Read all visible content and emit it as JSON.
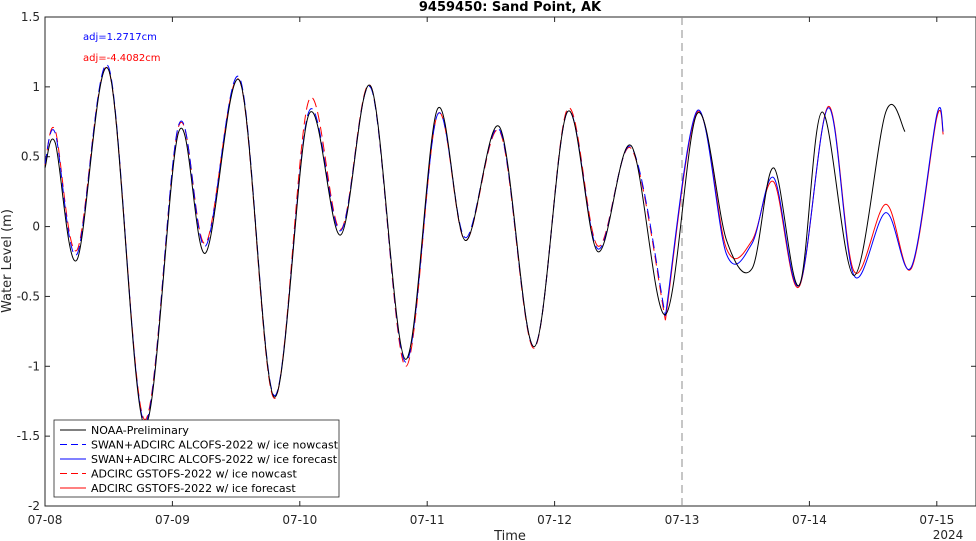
{
  "chart_data": {
    "type": "line",
    "title": "9459450: Sand Point, AK",
    "xlabel": "Time",
    "ylabel": "Water Level (m)",
    "xlim": [
      "07-08",
      "07-15 ~06:00"
    ],
    "ylim": [
      -2,
      1.5
    ],
    "x_tick_labels": [
      "07-08",
      "07-09",
      "07-10",
      "07-11",
      "07-12",
      "07-13",
      "07-14",
      "07-15"
    ],
    "x_year_label": "2024",
    "y_tick_labels": [
      "-2",
      "-1.5",
      "-1",
      "-0.5",
      "0",
      "0.5",
      "1",
      "1.5"
    ],
    "grid": false,
    "nowcast_forecast_divider_x": "07-13 00:00",
    "annotations": [
      {
        "text": "adj=1.2717cm",
        "color": "#0000ff"
      },
      {
        "text": "adj=-4.4082cm",
        "color": "#ff0000"
      }
    ],
    "legend_position": "lower-left",
    "x_units": "days since 07-08 00:00",
    "series": [
      {
        "name": "NOAA-Preliminary",
        "color": "#000000",
        "dash": "solid",
        "x": [
          0,
          0.08,
          0.25,
          0.5,
          0.78,
          1.05,
          1.26,
          1.53,
          1.8,
          2.07,
          2.32,
          2.56,
          2.83,
          3.08,
          3.3,
          3.57,
          3.84,
          4.1,
          4.34,
          4.6,
          4.87,
          5.12,
          5.35,
          5.55,
          5.72,
          5.92,
          6.1,
          6.35,
          6.6,
          6.75
        ],
        "y": [
          0.42,
          0.6,
          -0.24,
          1.12,
          -1.42,
          0.68,
          -0.19,
          1.04,
          -1.22,
          0.8,
          -0.06,
          1.0,
          -0.95,
          0.84,
          -0.1,
          0.71,
          -0.86,
          0.82,
          -0.18,
          0.58,
          -0.63,
          0.81,
          -0.1,
          -0.3,
          0.42,
          -0.42,
          0.82,
          -0.35,
          0.82,
          0.68
        ]
      },
      {
        "name": "SWAN+ADCIRC ALCOFS-2022 w/ ice nowcast",
        "color": "#0000ff",
        "dash": "dashed",
        "x": [
          0,
          0.08,
          0.25,
          0.5,
          0.78,
          1.05,
          1.26,
          1.53,
          1.8,
          2.07,
          2.32,
          2.56,
          2.83,
          3.08,
          3.3,
          3.57,
          3.84,
          4.1,
          4.34,
          4.6,
          4.87
        ],
        "y": [
          0.45,
          0.67,
          -0.2,
          1.14,
          -1.4,
          0.73,
          -0.14,
          1.06,
          -1.21,
          0.82,
          -0.03,
          0.99,
          -0.97,
          0.8,
          -0.08,
          0.69,
          -0.86,
          0.82,
          -0.16,
          0.57,
          -0.64
        ]
      },
      {
        "name": "SWAN+ADCIRC ALCOFS-2022 w/ ice forecast",
        "color": "#0000ff",
        "dash": "solid",
        "x": [
          4.87,
          5.12,
          5.35,
          5.55,
          5.72,
          5.92,
          6.15,
          6.35,
          6.6,
          6.8,
          7.0,
          7.05
        ],
        "y": [
          -0.64,
          0.83,
          -0.2,
          -0.12,
          0.35,
          -0.42,
          0.85,
          -0.35,
          0.1,
          -0.29,
          0.8,
          0.68
        ]
      },
      {
        "name": "ADCIRC GSTOFS-2022 w/ ice nowcast",
        "color": "#ff0000",
        "dash": "dashed",
        "x": [
          0,
          0.08,
          0.25,
          0.5,
          0.78,
          1.05,
          1.26,
          1.53,
          1.8,
          2.07,
          2.32,
          2.56,
          2.83,
          3.08,
          3.3,
          3.57,
          3.84,
          4.1,
          4.34,
          4.6,
          4.87
        ],
        "y": [
          0.44,
          0.69,
          -0.17,
          1.12,
          -1.38,
          0.72,
          -0.12,
          1.04,
          -1.23,
          0.9,
          -0.02,
          1.0,
          -1.0,
          0.8,
          -0.1,
          0.68,
          -0.87,
          0.84,
          -0.14,
          0.56,
          -0.67
        ]
      },
      {
        "name": "ADCIRC GSTOFS-2022 w/ ice forecast",
        "color": "#ff0000",
        "dash": "solid",
        "x": [
          4.87,
          5.12,
          5.35,
          5.55,
          5.72,
          5.92,
          6.15,
          6.35,
          6.6,
          6.8,
          7.0,
          7.05
        ],
        "y": [
          -0.67,
          0.82,
          -0.16,
          -0.1,
          0.32,
          -0.43,
          0.86,
          -0.32,
          0.16,
          -0.3,
          0.78,
          0.66
        ]
      }
    ]
  }
}
